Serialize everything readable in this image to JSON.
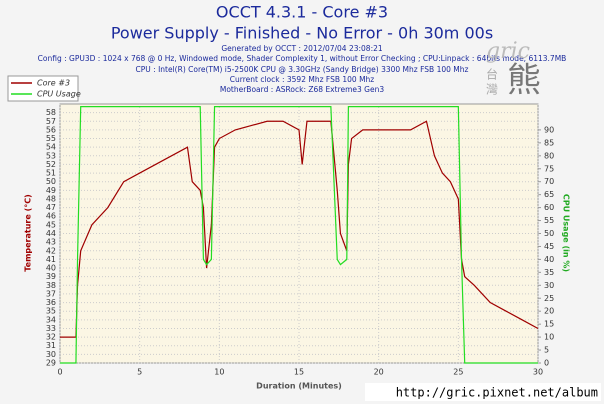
{
  "chart_data": {
    "type": "line",
    "title": "OCCT 4.3.1 - Core #3",
    "subtitle": "Power Supply - Finished - No Error - 0h 30m 00s",
    "info": [
      "Generated by OCCT : 2012/07/04 23:08:21",
      "Config : GPU3D : 1024 x 768 @ 0 Hz, Windowed mode, Shader Complexity 1, without Error Checking ; CPU:Linpack : 64bits mode, 6113.7MB",
      "CPU : Intel(R) Core(TM) i5-2500K CPU @ 3.30GHz (Sandy Bridge) 3300 Mhz FSB 100 Mhz",
      "Current clock : 3592 Mhz FSB 100 Mhz",
      "MotherBoard : ASRock: Z68 Extreme3 Gen3"
    ],
    "xlabel": "Duration (Minutes)",
    "ylabel": "Temperature (°C)",
    "y2label": "CPU Usage (in %)",
    "watermark": [
      "gric",
      "台",
      "灣",
      "熊"
    ],
    "url": "http://gric.pixnet.net/album",
    "x": [
      0,
      0.5,
      1,
      1.1,
      1.3,
      2,
      3,
      4,
      5,
      6,
      7,
      8,
      8.3,
      8.8,
      9,
      9.2,
      9.5,
      9.7,
      10,
      11,
      12,
      13,
      14,
      15,
      15.2,
      15.5,
      16,
      17,
      17.4,
      17.6,
      18,
      18.1,
      18.3,
      19,
      20,
      21,
      22,
      23,
      23.5,
      24,
      24.5,
      25,
      25.2,
      25.4,
      26,
      27,
      28,
      29,
      30
    ],
    "series": [
      {
        "name": "Core #3",
        "color": "#a00000",
        "axis": "y",
        "values": [
          32,
          32,
          32,
          38,
          42,
          45,
          47,
          50,
          51,
          52,
          53,
          54,
          50,
          49,
          47,
          40,
          45,
          54,
          55,
          56,
          56.5,
          57,
          57,
          56,
          52,
          57,
          57,
          57,
          49,
          44,
          42,
          52,
          55,
          56,
          56,
          56,
          56,
          57,
          53,
          51,
          50,
          48,
          41,
          39,
          38,
          36,
          35,
          34,
          33
        ]
      },
      {
        "name": "CPU Usage",
        "color": "#22dd22",
        "axis": "y2",
        "values": [
          0,
          0,
          0,
          40,
          99,
          99,
          99,
          99,
          99,
          99,
          99,
          99,
          99,
          99,
          40,
          38,
          40,
          99,
          99,
          99,
          99,
          99,
          99,
          99,
          99,
          99,
          99,
          99,
          40,
          38,
          40,
          99,
          99,
          99,
          99,
          99,
          99,
          99,
          99,
          99,
          99,
          99,
          40,
          0,
          0,
          0,
          0,
          0,
          0
        ]
      }
    ],
    "xlim": [
      0,
      30
    ],
    "xticks": [
      0,
      5,
      10,
      15,
      20,
      25,
      30
    ],
    "ylim": [
      29,
      59
    ],
    "yticks": [
      29,
      30,
      31,
      32,
      33,
      34,
      35,
      36,
      37,
      38,
      39,
      40,
      41,
      42,
      43,
      44,
      45,
      46,
      47,
      48,
      49,
      50,
      51,
      52,
      53,
      54,
      55,
      56,
      57,
      58
    ],
    "y2lim": [
      0,
      100
    ],
    "y2ticks": [
      0,
      5,
      10,
      15,
      20,
      25,
      30,
      35,
      40,
      45,
      50,
      55,
      60,
      65,
      70,
      75,
      80,
      85,
      90
    ],
    "grid": true,
    "legend": "top-left"
  }
}
